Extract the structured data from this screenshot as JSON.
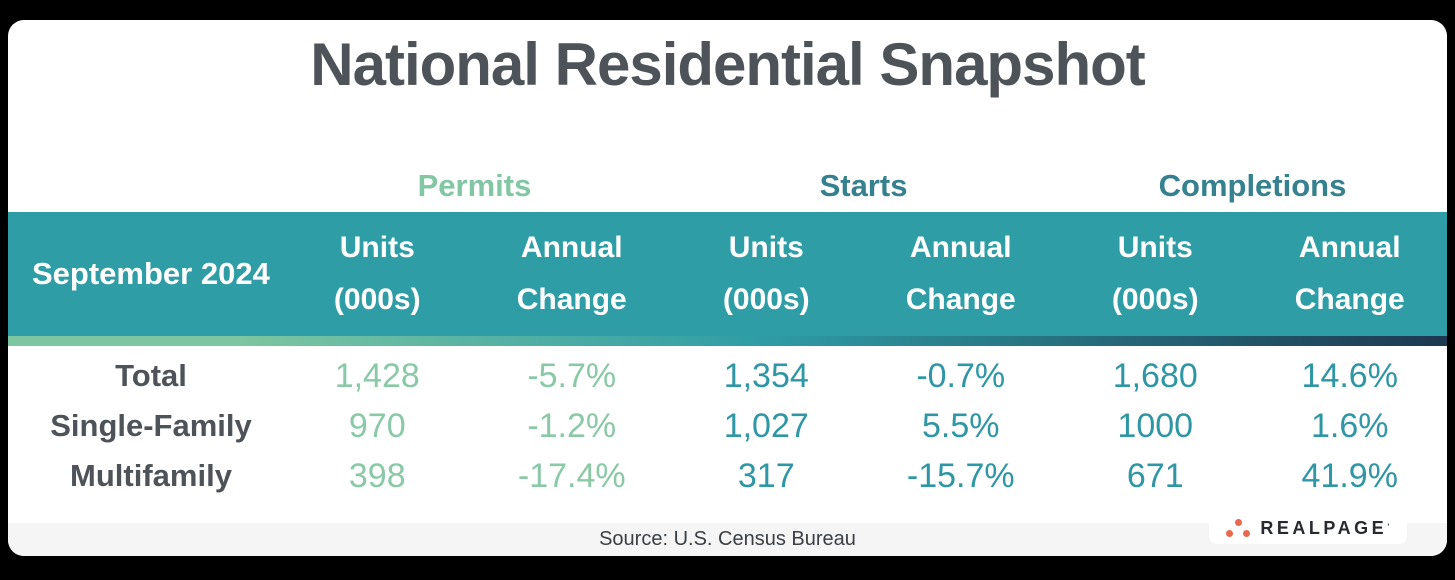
{
  "title": "National Residential Snapshot",
  "table": {
    "period_label": "September 2024",
    "groups": [
      {
        "label": "Permits"
      },
      {
        "label": "Starts"
      },
      {
        "label": "Completions"
      }
    ],
    "column_headers": [
      {
        "line1": "Units",
        "line2": "(000s)"
      },
      {
        "line1": "Annual",
        "line2": "Change"
      },
      {
        "line1": "Units",
        "line2": "(000s)"
      },
      {
        "line1": "Annual",
        "line2": "Change"
      },
      {
        "line1": "Units",
        "line2": "(000s)"
      },
      {
        "line1": "Annual",
        "line2": "Change"
      }
    ],
    "rows": [
      {
        "label": "Total",
        "permits_units": "1,428",
        "permits_change": "-5.7%",
        "starts_units": "1,354",
        "starts_change": "-0.7%",
        "completions_units": "1,680",
        "completions_change": "14.6%"
      },
      {
        "label": "Single-Family",
        "permits_units": "970",
        "permits_change": "-1.2%",
        "starts_units": "1,027",
        "starts_change": "5.5%",
        "completions_units": "1000",
        "completions_change": "1.6%"
      },
      {
        "label": "Multifamily",
        "permits_units": "398",
        "permits_change": "-17.4%",
        "starts_units": "317",
        "starts_change": "-15.7%",
        "completions_units": "671",
        "completions_change": "41.9%"
      }
    ]
  },
  "footer": {
    "source": "Source: U.S. Census Bureau",
    "logo_text": "REALPAGE",
    "logo_tick": "’"
  },
  "colors": {
    "page_bg": "#000000",
    "card_bg": "#ffffff",
    "title": "#4d5359",
    "mint": "#82c7a3",
    "mint_data": "#8ac9a6",
    "group_teal": "#35818f",
    "teal_header_bg": "#2f9da5",
    "teal_data": "#2f96a5",
    "header_text": "#ffffff",
    "grad_mint": "#7cc6a1",
    "grad_dark": "#1d3850",
    "row_label": "#4d5359",
    "footer_bg": "#f5f5f6",
    "footer_text": "#3a3f44",
    "logo_dot": "#e8694d",
    "logo_text": "#26292e"
  },
  "chart_data": {
    "type": "table",
    "title": "National Residential Snapshot",
    "period": "September 2024",
    "categories": [
      "Total",
      "Single-Family",
      "Multifamily"
    ],
    "series": [
      {
        "name": "Permits Units (000s)",
        "values": [
          1428,
          970,
          398
        ]
      },
      {
        "name": "Permits Annual Change %",
        "values": [
          -5.7,
          -1.2,
          -17.4
        ]
      },
      {
        "name": "Starts Units (000s)",
        "values": [
          1354,
          1027,
          317
        ]
      },
      {
        "name": "Starts Annual Change %",
        "values": [
          -0.7,
          5.5,
          -15.7
        ]
      },
      {
        "name": "Completions Units (000s)",
        "values": [
          1680,
          1000,
          671
        ]
      },
      {
        "name": "Completions Annual Change %",
        "values": [
          14.6,
          1.6,
          41.9
        ]
      }
    ],
    "source": "Source: U.S. Census Bureau"
  }
}
